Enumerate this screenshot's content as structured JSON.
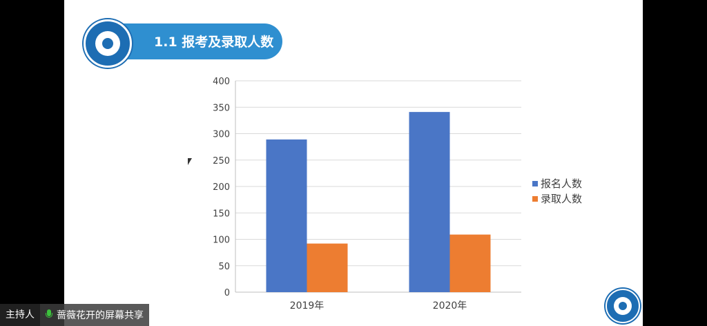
{
  "slide": {
    "title": "1.1 报考及录取人数"
  },
  "host_bar": {
    "host_label": "主持人",
    "share_text": "蔷薇花开的屏幕共享",
    "mic_icon": "microphone-icon"
  },
  "chart_data": {
    "type": "bar",
    "title": "",
    "xlabel": "",
    "ylabel": "",
    "categories": [
      "2019年",
      "2020年"
    ],
    "series": [
      {
        "name": "报名人数",
        "values": [
          289,
          341
        ],
        "color": "#4a76c6"
      },
      {
        "name": "录取人数",
        "values": [
          92,
          109
        ],
        "color": "#ed7d31"
      }
    ],
    "ylim": [
      0,
      400
    ],
    "yticks": [
      "0",
      "50",
      "100",
      "150",
      "200",
      "250",
      "300",
      "350",
      "400"
    ],
    "grid": true,
    "legend_position": "right"
  }
}
